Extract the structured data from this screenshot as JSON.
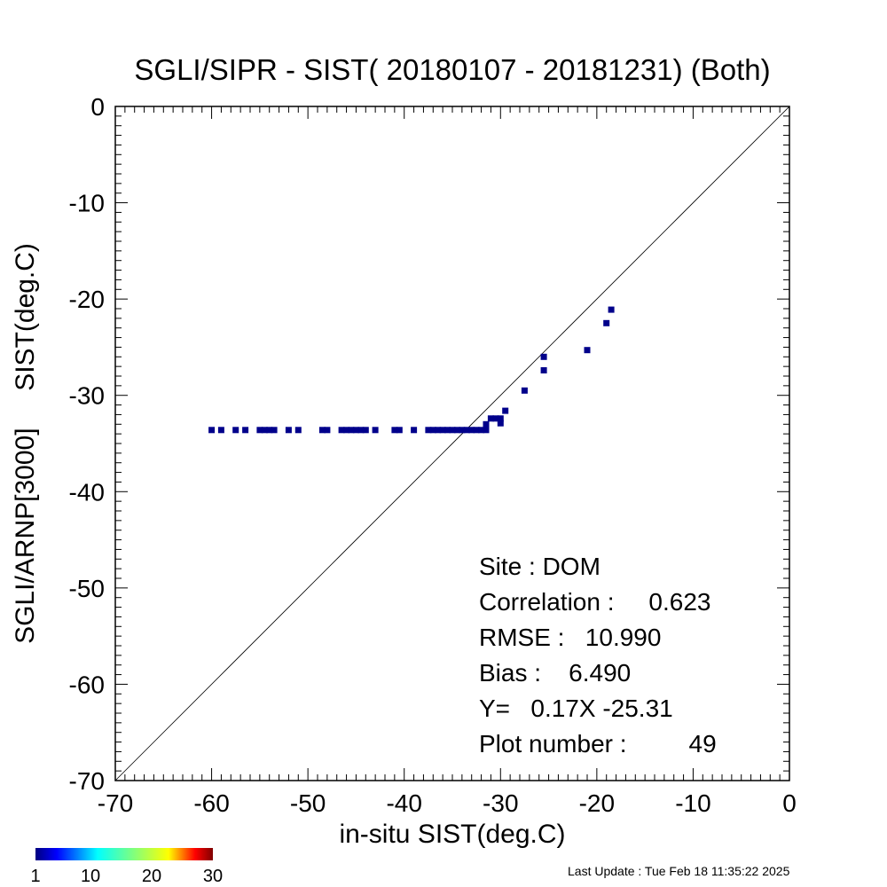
{
  "chart_data": {
    "type": "scatter",
    "title": "SGLI/SIPR - SIST( 20180107 - 20181231) (Both)",
    "xlabel": "in-situ SIST(deg.C)",
    "ylabel": "SGLI/ARNP[3000]     SIST(deg.C)",
    "xlim": [
      -70,
      0
    ],
    "ylim": [
      -70,
      0
    ],
    "xticks": [
      -70,
      -60,
      -50,
      -40,
      -30,
      -20,
      -10,
      0
    ],
    "yticks": [
      -70,
      -60,
      -50,
      -40,
      -30,
      -20,
      -10,
      0
    ],
    "xtick_labels": [
      "-70",
      "-60",
      "-50",
      "-40",
      "-30",
      "-20",
      "-10",
      "0"
    ],
    "ytick_labels": [
      "-70",
      "-60",
      "-50",
      "-40",
      "-30",
      "-20",
      "-10",
      "0"
    ],
    "reference_line": "y = x",
    "marker_color": "#00008b",
    "points": [
      [
        -60.0,
        -33.6
      ],
      [
        -59.0,
        -33.6
      ],
      [
        -57.5,
        -33.6
      ],
      [
        -56.5,
        -33.6
      ],
      [
        -55.0,
        -33.6
      ],
      [
        -54.5,
        -33.6
      ],
      [
        -54.0,
        -33.6
      ],
      [
        -53.5,
        -33.6
      ],
      [
        -52.0,
        -33.6
      ],
      [
        -51.0,
        -33.6
      ],
      [
        -48.5,
        -33.6
      ],
      [
        -48.0,
        -33.6
      ],
      [
        -46.5,
        -33.6
      ],
      [
        -46.0,
        -33.6
      ],
      [
        -45.5,
        -33.6
      ],
      [
        -45.0,
        -33.6
      ],
      [
        -44.5,
        -33.6
      ],
      [
        -44.0,
        -33.6
      ],
      [
        -43.0,
        -33.6
      ],
      [
        -41.0,
        -33.6
      ],
      [
        -40.5,
        -33.6
      ],
      [
        -39.0,
        -33.6
      ],
      [
        -37.5,
        -33.6
      ],
      [
        -37.0,
        -33.6
      ],
      [
        -36.5,
        -33.6
      ],
      [
        -36.0,
        -33.6
      ],
      [
        -35.5,
        -33.6
      ],
      [
        -35.0,
        -33.6
      ],
      [
        -34.5,
        -33.6
      ],
      [
        -34.0,
        -33.6
      ],
      [
        -33.5,
        -33.6
      ],
      [
        -33.0,
        -33.6
      ],
      [
        -32.5,
        -33.6
      ],
      [
        -32.0,
        -33.6
      ],
      [
        -31.5,
        -33.6
      ],
      [
        -31.5,
        -33.0
      ],
      [
        -31.0,
        -32.4
      ],
      [
        -30.5,
        -32.4
      ],
      [
        -30.0,
        -32.4
      ],
      [
        -30.0,
        -32.9
      ],
      [
        -29.5,
        -31.6
      ],
      [
        -27.5,
        -29.5
      ],
      [
        -25.5,
        -27.4
      ],
      [
        -25.5,
        -26.0
      ],
      [
        -21.0,
        -25.3
      ],
      [
        -19.0,
        -22.5
      ],
      [
        -18.5,
        -21.1
      ]
    ],
    "colorbar": {
      "min": 1,
      "max": 30,
      "tick_labels": [
        "1",
        "10",
        "20",
        "30"
      ],
      "colormap": "jet"
    },
    "stats": {
      "site": "Site : DOM",
      "correlation": "Correlation :     0.623",
      "rmse": "RMSE :   10.990",
      "bias": "Bias :    6.490",
      "fit": "Y=   0.17X -25.31",
      "plot_number": "Plot number :         49"
    }
  },
  "footer": {
    "last_update": "Last Update : Tue Feb 18 11:35:22 2025"
  }
}
